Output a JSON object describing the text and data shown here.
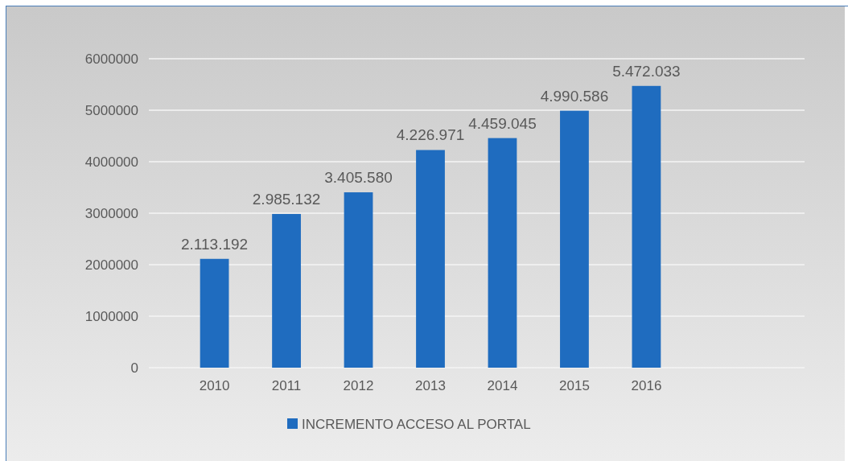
{
  "chart_data": {
    "type": "bar",
    "categories": [
      "2010",
      "2011",
      "2012",
      "2013",
      "2014",
      "2015",
      "2016"
    ],
    "series": [
      {
        "name": "INCREMENTO ACCESO AL PORTAL",
        "color": "#1f6cbf",
        "values": [
          2113192,
          2985132,
          3405580,
          4226971,
          4459045,
          4990586,
          5472033
        ],
        "value_labels": [
          "2.113.192",
          "2.985.132",
          "3.405.580",
          "4.226.971",
          "4.459.045",
          "4.990.586",
          "5.472.033"
        ]
      }
    ],
    "ylim": [
      0,
      6000000
    ],
    "yticks": [
      0,
      1000000,
      2000000,
      3000000,
      4000000,
      5000000,
      6000000
    ],
    "grid": "y",
    "legend": "bottom"
  }
}
